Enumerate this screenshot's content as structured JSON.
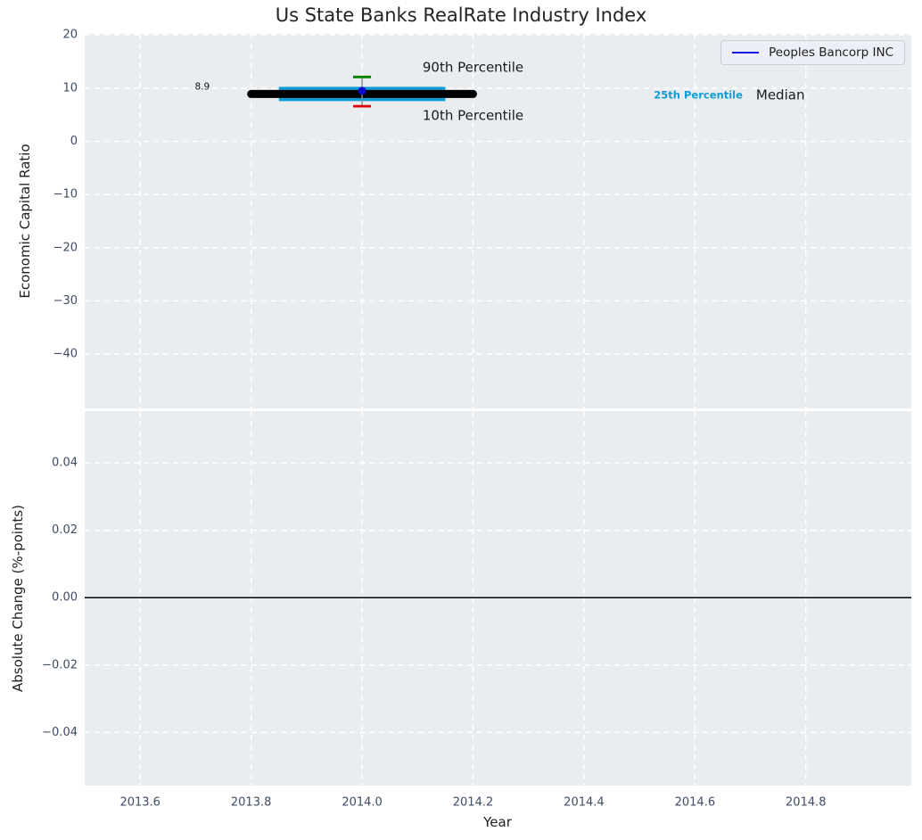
{
  "figure": {
    "title": "Us State Banks RealRate Industry Index",
    "plot_bg": "#e9edf0",
    "grid_color": "#ffffff",
    "tick_color": "#3d4c63",
    "label_color": "#1f1f1f"
  },
  "chart_data": [
    {
      "type": "line",
      "title": "Us State Banks RealRate Industry Index",
      "ylabel": "Economic Capital Ratio",
      "xlabel": "",
      "xlim": [
        2013.5,
        2014.99
      ],
      "ylim": [
        -50.2,
        20.2
      ],
      "grid": true,
      "legend": {
        "label": "Peoples Bancorp INC",
        "color": "#1515e8",
        "position": "upper right"
      },
      "yticks": {
        "values": [
          20,
          10,
          0,
          -10,
          -20,
          -30,
          -40
        ],
        "labels": [
          "20",
          "10",
          "0",
          "−10",
          "−20",
          "−30",
          "−40"
        ]
      },
      "xticks": {
        "values": [
          2013.6,
          2013.8,
          2014.0,
          2014.2,
          2014.4,
          2014.6,
          2014.8
        ],
        "labels": [
          "2013.6",
          "2013.8",
          "2014.0",
          "2014.2",
          "2014.4",
          "2014.6",
          "2014.8"
        ],
        "show_labels": false
      },
      "series": [
        {
          "name": "25th Percentile",
          "color": "#0f9bd3",
          "width": 16,
          "cap": "butt",
          "x": [
            2013.85,
            2014.15
          ],
          "y": [
            8.9,
            8.9
          ]
        },
        {
          "name": "Median",
          "color": "#000000",
          "width": 9,
          "cap": "round",
          "x": [
            2013.8,
            2014.2
          ],
          "y": [
            8.9,
            8.9
          ]
        }
      ],
      "errorbar": {
        "x": 2014.0,
        "top": 12.1,
        "bottom": 6.6,
        "point": 9.5,
        "top_name": "90th Percentile",
        "bottom_name": "10th Percentile",
        "point_name": "Peoples Bancorp INC",
        "top_color": "#007f00",
        "bottom_color": "#e00000",
        "line_color": "#8c8c8c",
        "point_color": "#0b0bd0"
      },
      "annotations": [
        {
          "text": "8.9",
          "x": 2013.712,
          "y": 10.2,
          "size": 10.5,
          "weight": "normal",
          "color": "#111111"
        },
        {
          "text": "90th Percentile",
          "x": 2014.2,
          "y": 13.9,
          "size": 15,
          "weight": "normal",
          "color": "#1a1a1a"
        },
        {
          "text": "10th Percentile",
          "x": 2014.2,
          "y": 4.9,
          "size": 15,
          "weight": "normal",
          "color": "#1a1a1a"
        },
        {
          "text": "25th Percentile",
          "x": 2014.606,
          "y": 8.75,
          "size": 11.5,
          "weight": "bold",
          "color": "#0f9bd3"
        },
        {
          "text": "Median",
          "x": 2014.754,
          "y": 8.75,
          "size": 15,
          "weight": "normal",
          "color": "#1a1a1a"
        }
      ]
    },
    {
      "type": "line",
      "title": "",
      "ylabel": "Absolute Change (%-points)",
      "xlabel": "Year",
      "xlim": [
        2013.5,
        2014.99
      ],
      "ylim": [
        -0.0558,
        0.0554
      ],
      "grid": true,
      "yticks": {
        "values": [
          0.04,
          0.02,
          0.0,
          -0.02,
          -0.04
        ],
        "labels": [
          "0.04",
          "0.02",
          "0.00",
          "−0.02",
          "−0.04"
        ]
      },
      "xticks": {
        "values": [
          2013.6,
          2013.8,
          2014.0,
          2014.2,
          2014.4,
          2014.6,
          2014.8
        ],
        "labels": [
          "2013.6",
          "2013.8",
          "2014.0",
          "2014.2",
          "2014.4",
          "2014.6",
          "2014.8"
        ],
        "show_labels": true
      },
      "series": [],
      "hline": {
        "y": 0.0,
        "color": "#000000",
        "width": 1.5
      }
    }
  ]
}
